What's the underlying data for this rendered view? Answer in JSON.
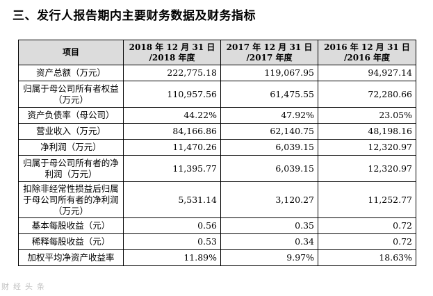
{
  "heading": "三、发行人报告期内主要财务数据及财务指标",
  "table": {
    "headers": [
      "项目",
      "2018 年 12 月 31 日 /2018 年度",
      "2017 年 12 月 31 日 /2017 年度",
      "2016 年 12 月 31 日 /2016 年度"
    ],
    "header_lines": [
      [
        "项目",
        ""
      ],
      [
        "2018 年 12 月 31 日",
        "/2018 年度"
      ],
      [
        "2017 年 12 月 31 日",
        "/2017 年度"
      ],
      [
        "2016 年 12 月 31 日",
        "/2016 年度"
      ]
    ],
    "rows": [
      {
        "label": "资产总额（万元）",
        "values": [
          "222,775.18",
          "119,067.95",
          "94,927.14"
        ]
      },
      {
        "label": "归属于母公司所有者权益（万元）",
        "values": [
          "110,957.56",
          "61,475.55",
          "72,280.66"
        ]
      },
      {
        "label": "资产负债率（母公司）",
        "values": [
          "44.22%",
          "47.92%",
          "23.05%"
        ]
      },
      {
        "label": "营业收入（万元）",
        "values": [
          "84,166.86",
          "62,140.75",
          "48,198.16"
        ]
      },
      {
        "label": "净利润（万元）",
        "values": [
          "11,470.26",
          "6,039.15",
          "12,320.97"
        ]
      },
      {
        "label": "归属于母公司所有者的净利润（万元）",
        "values": [
          "11,395.77",
          "6,039.15",
          "12,320.97"
        ]
      },
      {
        "label": "扣除非经常性损益后归属于母公司所有者的净利润（万元）",
        "values": [
          "5,531.14",
          "3,120.27",
          "11,252.77"
        ]
      },
      {
        "label": "基本每股收益（元）",
        "values": [
          "0.56",
          "0.35",
          "0.72"
        ]
      },
      {
        "label": "稀释每股收益（元）",
        "values": [
          "0.53",
          "0.34",
          "0.72"
        ]
      },
      {
        "label": "加权平均净资产收益率",
        "values": [
          "11.89%",
          "9.97%",
          "18.63%"
        ]
      }
    ]
  },
  "watermark": "财经头条"
}
